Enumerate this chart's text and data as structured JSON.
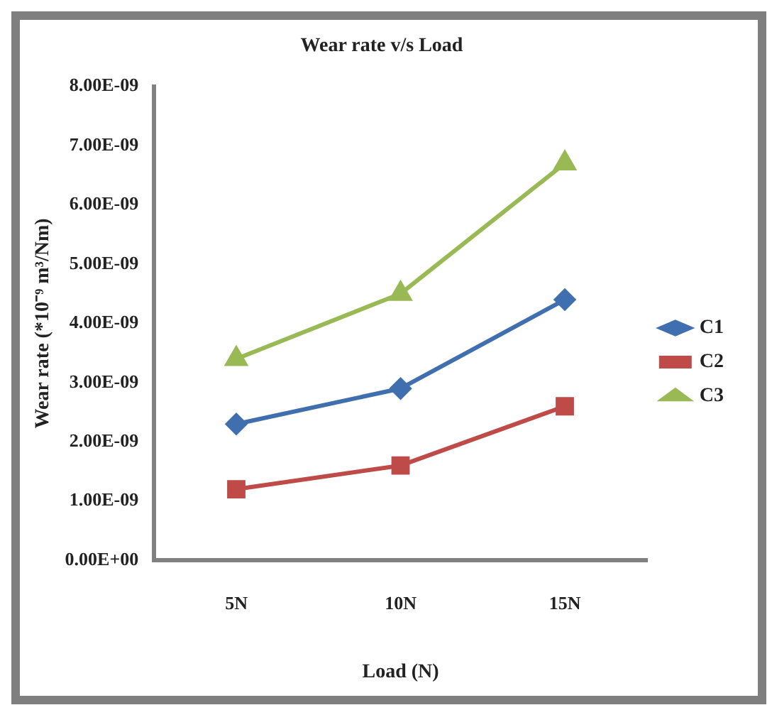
{
  "chart_data": {
    "type": "line",
    "title": "Wear rate v/s Load",
    "xlabel": "Load (N)",
    "ylabel": "Wear rate (*10⁻⁹ m³/Nm)",
    "categories": [
      "5N",
      "10N",
      "15N"
    ],
    "series": [
      {
        "name": "C1",
        "color": "#3f6fae",
        "marker": "diamond",
        "values": [
          2.3e-09,
          2.9e-09,
          4.4e-09
        ]
      },
      {
        "name": "C2",
        "color": "#be4b48",
        "marker": "square",
        "values": [
          1.2e-09,
          1.6e-09,
          2.6e-09
        ]
      },
      {
        "name": "C3",
        "color": "#98b954",
        "marker": "triangle",
        "values": [
          3.4e-09,
          4.5e-09,
          6.7e-09
        ]
      }
    ],
    "ylim": [
      0,
      8e-09
    ],
    "yticks": [
      {
        "value": 0,
        "label": "0.00E+00"
      },
      {
        "value": 1e-09,
        "label": "1.00E-09"
      },
      {
        "value": 2e-09,
        "label": "2.00E-09"
      },
      {
        "value": 3e-09,
        "label": "3.00E-09"
      },
      {
        "value": 4e-09,
        "label": "4.00E-09"
      },
      {
        "value": 5e-09,
        "label": "5.00E-09"
      },
      {
        "value": 6e-09,
        "label": "6.00E-09"
      },
      {
        "value": 7e-09,
        "label": "7.00E-09"
      },
      {
        "value": 8e-09,
        "label": "8.00E-09"
      }
    ],
    "grid": false,
    "legend": "right"
  }
}
